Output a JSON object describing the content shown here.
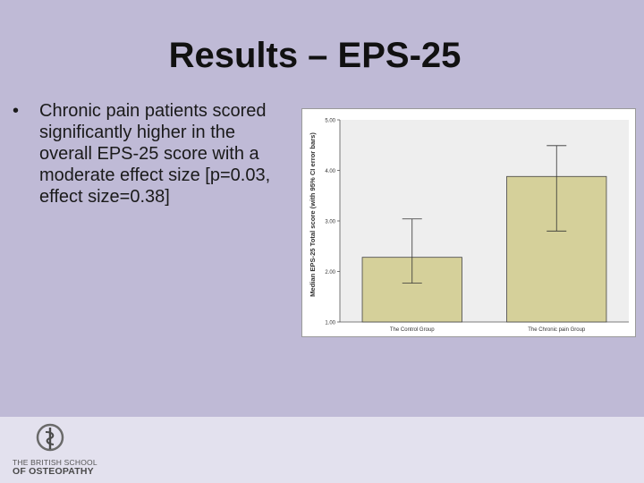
{
  "slide": {
    "title": "Results – EPS-25",
    "bullets": [
      {
        "marker": "•",
        "text": "Chronic pain patients scored significantly higher in the overall EPS-25 score with a moderate effect size [p=0.03, effect size=0.38]"
      }
    ]
  },
  "logo": {
    "line1": "THE BRITISH SCHOOL",
    "line2": "OF OSTEOPATHY"
  },
  "colors": {
    "background": "#bfbad6",
    "footer": "#e3e1ee",
    "bar_fill": "#d5d09a",
    "plot_bg": "#eeeeee"
  },
  "chart_data": {
    "type": "bar",
    "title": "",
    "xlabel": "",
    "ylabel": "Median EPS-25 Total score (with 95% CI error bars)",
    "categories": [
      "The Control Group",
      "The Chronic pain Group"
    ],
    "values": [
      2.28,
      3.88
    ],
    "error_low": [
      1.77,
      2.8
    ],
    "error_high": [
      3.04,
      4.49
    ],
    "ylim": [
      1.0,
      5.0
    ],
    "yticks": [
      1.0,
      2.0,
      3.0,
      4.0,
      5.0
    ],
    "ytick_labels": [
      "1.00",
      "2.00",
      "3.00",
      "4.00",
      "5.00"
    ],
    "grid": false,
    "legend": "none"
  }
}
